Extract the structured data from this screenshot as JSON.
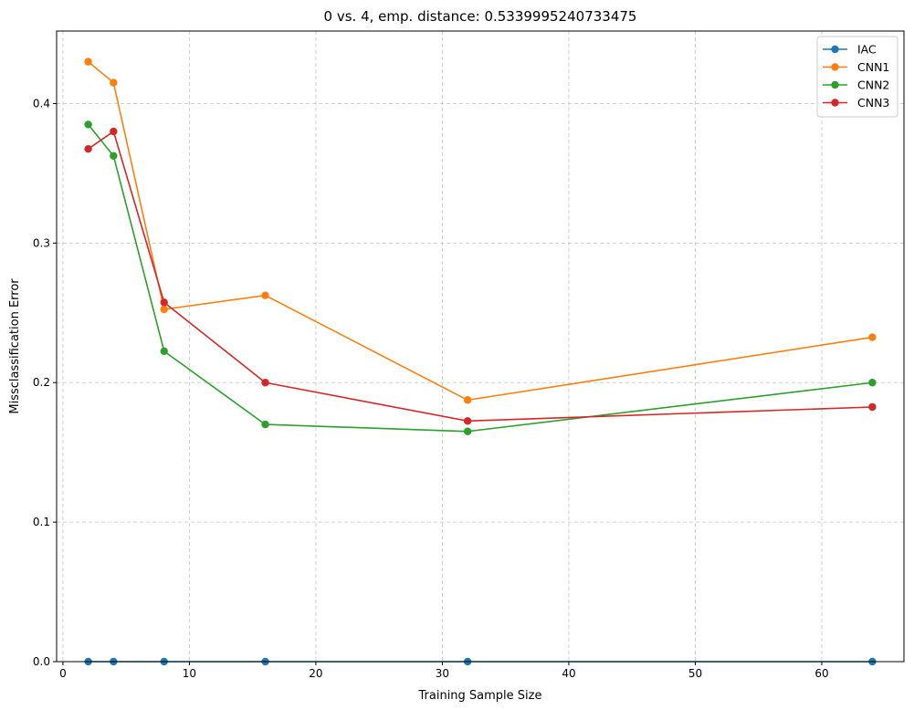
{
  "chart_data": {
    "type": "line",
    "title": "0 vs. 4, emp. distance: 0.5339995240733475",
    "xlabel": "Training Sample Size",
    "ylabel": "Missclassification Error",
    "xlim": [
      -0.5,
      66.5
    ],
    "ylim": [
      0.0,
      0.452
    ],
    "xticks": [
      0,
      10,
      20,
      30,
      40,
      50,
      60
    ],
    "yticks": [
      0.0,
      0.1,
      0.2,
      0.3,
      0.4
    ],
    "xtick_labels": [
      "0",
      "10",
      "20",
      "30",
      "40",
      "50",
      "60"
    ],
    "ytick_labels": [
      "0.0",
      "0.1",
      "0.2",
      "0.3",
      "0.4"
    ],
    "grid": true,
    "legend_position": "top-right",
    "x": [
      2,
      4,
      8,
      16,
      32,
      64
    ],
    "series": [
      {
        "name": "IAC",
        "color": "#1f77b4",
        "values": [
          0.0,
          0.0,
          0.0,
          0.0,
          0.0,
          0.0
        ]
      },
      {
        "name": "CNN1",
        "color": "#ff7f0e",
        "values": [
          0.43,
          0.415,
          0.2525,
          0.2625,
          0.1875,
          0.2325
        ]
      },
      {
        "name": "CNN2",
        "color": "#2ca02c",
        "values": [
          0.385,
          0.3625,
          0.2225,
          0.17,
          0.165,
          0.2
        ]
      },
      {
        "name": "CNN3",
        "color": "#d62728",
        "values": [
          0.3675,
          0.38,
          0.2575,
          0.2,
          0.1725,
          0.1825
        ]
      }
    ]
  }
}
